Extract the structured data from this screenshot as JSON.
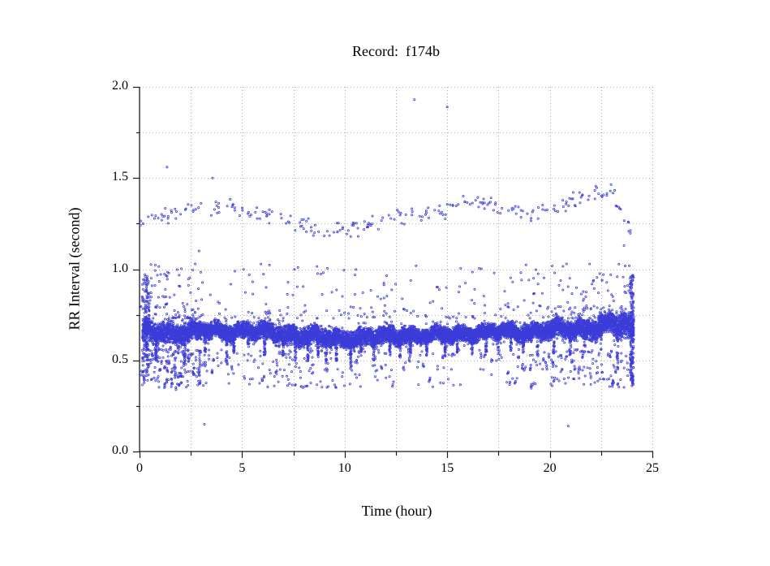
{
  "page": {
    "background": "#ffffff"
  },
  "chart": {
    "title": "Record:  f174b",
    "xlabel": "Time (hour)",
    "ylabel": "RR Interval (second)"
  },
  "chart_data": {
    "type": "scatter",
    "title": "Record:  f174b",
    "xlabel": "Time (hour)",
    "ylabel": "RR Interval (second)",
    "xlim": [
      0,
      25
    ],
    "ylim": [
      0.0,
      2.0
    ],
    "x_major_ticks": [
      0,
      5,
      10,
      15,
      20,
      25
    ],
    "x_tick_labels": [
      "0",
      "5",
      "10",
      "15",
      "20",
      "25"
    ],
    "x_minor_step": 2.5,
    "y_major_ticks": [
      0.0,
      0.5,
      1.0,
      1.5,
      2.0
    ],
    "y_tick_labels": [
      "0.0",
      "0.5",
      "1.0",
      "1.5",
      "2.0"
    ],
    "y_minor_step": 0.25,
    "grid": {
      "style": "dotted",
      "color": "#ababab",
      "lines": "every 0.25 s horizontal, every 2.5 h vertical"
    },
    "marker": {
      "shape": "open-circle",
      "radius_px": 1.1,
      "color": "#3c3cd8"
    },
    "axis_color": "#1a1a1a",
    "outliers": [
      [
        1.34,
        1.56
      ],
      [
        3.56,
        1.5
      ],
      [
        13.4,
        1.93
      ],
      [
        15.0,
        1.89
      ],
      [
        2.9,
        1.1
      ],
      [
        23.62,
        1.13
      ],
      [
        3.16,
        0.15
      ],
      [
        20.9,
        0.14
      ]
    ],
    "point_cloud_model": {
      "seed": 42,
      "t_start": 0.15,
      "t_end": 24.1,
      "main_points_per_hour": 430,
      "main_center_hourly": [
        0.66,
        0.655,
        0.65,
        0.66,
        0.665,
        0.665,
        0.655,
        0.645,
        0.635,
        0.625,
        0.62,
        0.625,
        0.63,
        0.64,
        0.635,
        0.64,
        0.65,
        0.655,
        0.655,
        0.66,
        0.665,
        0.67,
        0.675,
        0.7,
        0.67
      ],
      "main_halfwidth_hourly": [
        0.05,
        0.045,
        0.05,
        0.04,
        0.035,
        0.035,
        0.04,
        0.045,
        0.045,
        0.04,
        0.04,
        0.04,
        0.04,
        0.035,
        0.035,
        0.035,
        0.035,
        0.035,
        0.035,
        0.04,
        0.04,
        0.04,
        0.045,
        0.055,
        0.06
      ],
      "center_wiggle": [
        [
          5.3,
          0.012,
          0.4
        ],
        [
          2.17,
          0.008,
          1.3
        ],
        [
          11.7,
          0.006,
          2.1
        ]
      ],
      "down_spikes": [
        [
          0.35,
          0.15
        ],
        [
          0.8,
          0.12
        ],
        [
          2.2,
          0.14
        ],
        [
          3.2,
          0.18
        ],
        [
          4.25,
          0.16
        ],
        [
          4.6,
          0.1
        ],
        [
          5.3,
          0.08
        ],
        [
          6.1,
          0.12
        ],
        [
          7.0,
          0.1
        ],
        [
          7.6,
          0.16
        ],
        [
          8.2,
          0.12
        ],
        [
          8.7,
          0.1
        ],
        [
          9.1,
          0.12
        ],
        [
          9.6,
          0.12
        ],
        [
          10.3,
          0.13
        ],
        [
          10.8,
          0.1
        ],
        [
          11.4,
          0.12
        ],
        [
          12.2,
          0.1
        ],
        [
          12.7,
          0.09
        ],
        [
          13.2,
          0.1
        ],
        [
          14.0,
          0.09
        ],
        [
          14.9,
          0.1
        ],
        [
          15.5,
          0.1
        ],
        [
          16.2,
          0.09
        ],
        [
          16.9,
          0.1
        ],
        [
          17.5,
          0.1
        ],
        [
          18.1,
          0.12
        ],
        [
          18.7,
          0.1
        ],
        [
          19.4,
          0.12
        ],
        [
          20.2,
          0.12
        ],
        [
          21.0,
          0.12
        ],
        [
          21.7,
          0.12
        ],
        [
          22.5,
          0.12
        ],
        [
          23.3,
          0.22
        ]
      ],
      "upper_band_center_hourly": [
        1.24,
        1.29,
        1.31,
        1.33,
        1.34,
        1.32,
        1.3,
        1.27,
        1.24,
        1.21,
        1.21,
        1.23,
        1.27,
        1.29,
        1.3,
        1.32,
        1.37,
        1.35,
        1.32,
        1.3,
        1.33,
        1.37,
        1.4,
        1.42,
        1.22
      ],
      "upper_band_rate_hourly": [
        8,
        13,
        10,
        8,
        8,
        10,
        11,
        10,
        10,
        11,
        12,
        11,
        10,
        9,
        10,
        10,
        12,
        10,
        10,
        10,
        11,
        12,
        12,
        13,
        5
      ],
      "upper_scatter_rate_hourly": [
        40,
        32,
        28,
        8,
        6,
        10,
        14,
        12,
        10,
        10,
        12,
        14,
        10,
        8,
        8,
        10,
        12,
        10,
        10,
        18,
        22,
        25,
        25,
        30,
        15
      ],
      "lower_scatter_rate_hourly": [
        50,
        55,
        60,
        18,
        8,
        16,
        20,
        24,
        20,
        16,
        14,
        12,
        8,
        8,
        10,
        8,
        8,
        8,
        12,
        22,
        26,
        28,
        26,
        32,
        18
      ],
      "start_end_columns": [
        {
          "t": 0.3,
          "spread": 0.35,
          "vmin": 0.4,
          "vmax": 0.97,
          "n": 110
        },
        {
          "t": 24.0,
          "spread": 0.18,
          "vmin": 0.36,
          "vmax": 0.97,
          "n": 150
        }
      ]
    }
  }
}
